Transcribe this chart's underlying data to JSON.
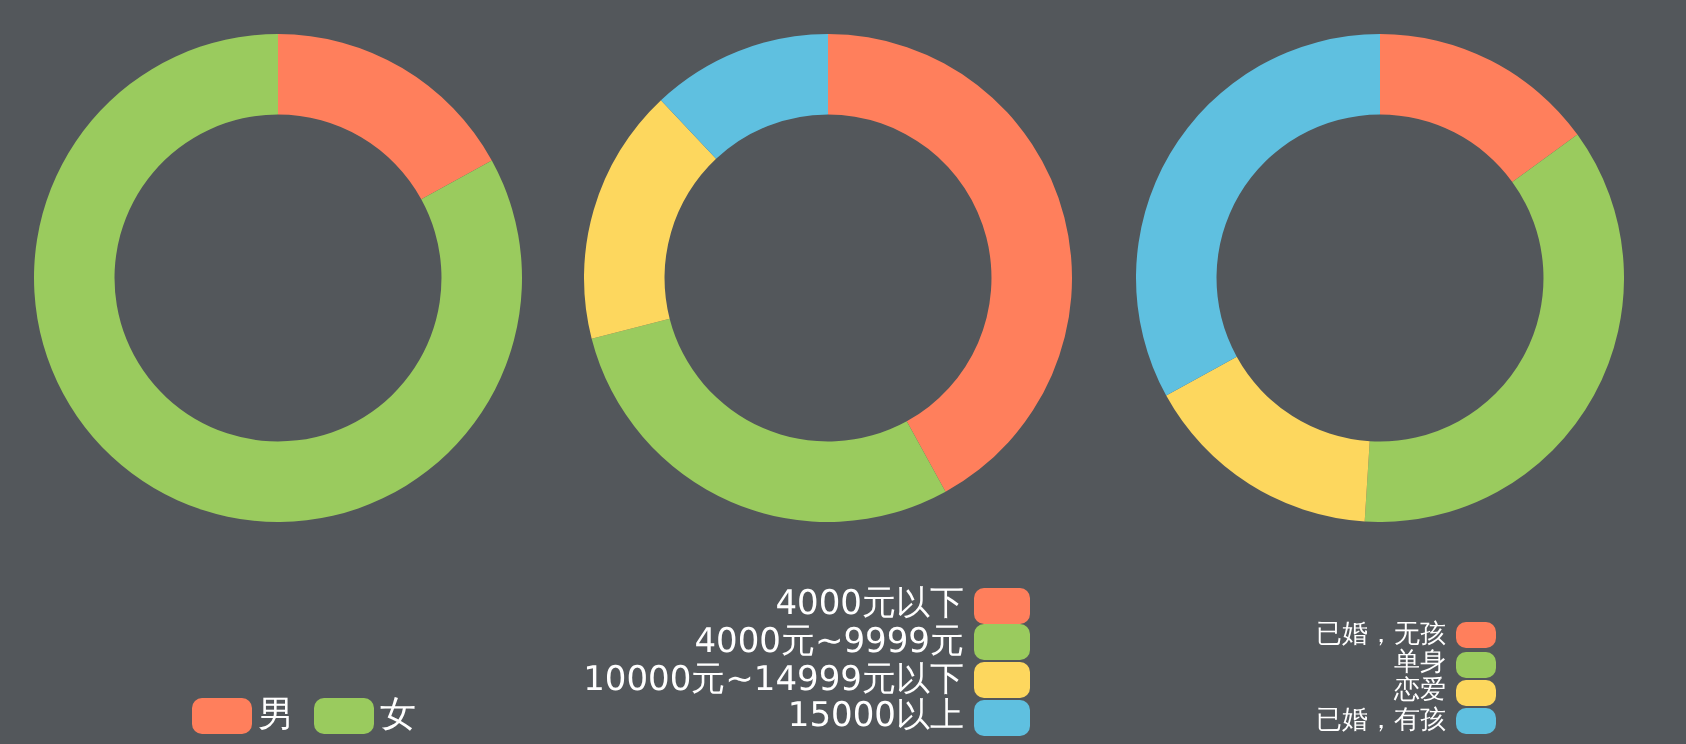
{
  "chart_data": [
    {
      "type": "donut",
      "categories": [
        "男",
        "女"
      ],
      "values": [
        17,
        83
      ],
      "colors": [
        "#ff7f5c",
        "#9acb5e"
      ],
      "legend": "bottom"
    },
    {
      "type": "donut",
      "categories": [
        "4000元以下",
        "4000元~9999元",
        "10000元~14999元以下",
        "15000以上"
      ],
      "values": [
        42,
        29,
        17,
        12
      ],
      "colors": [
        "#ff7f5c",
        "#9acb5e",
        "#fdd75e",
        "#5fc0e0"
      ],
      "legend": "bottom right"
    },
    {
      "type": "donut",
      "categories": [
        "已婚，无孩",
        "单身",
        "恋爱",
        "已婚，有孩"
      ],
      "values": [
        15,
        36,
        16,
        33
      ],
      "colors": [
        "#ff7f5c",
        "#9acb5e",
        "#fdd75e",
        "#5fc0e0"
      ],
      "legend": "bottom right"
    }
  ]
}
